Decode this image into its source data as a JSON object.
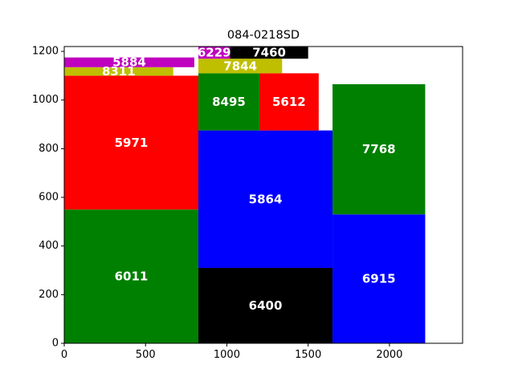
{
  "chart_data": {
    "type": "bar",
    "title": "084-0218SD",
    "xlabel": "",
    "ylabel": "",
    "xlim": [
      0,
      2450
    ],
    "ylim": [
      0,
      1220
    ],
    "xticks": [
      0,
      500,
      1000,
      1500,
      2000
    ],
    "yticks": [
      0,
      200,
      400,
      600,
      800,
      1000,
      1200
    ],
    "grid": false,
    "rectangles": [
      {
        "label": "6011",
        "x0": 0,
        "x1": 825,
        "y0": 0,
        "y1": 550,
        "color": "#008000"
      },
      {
        "label": "5971",
        "x0": 0,
        "x1": 825,
        "y0": 550,
        "y1": 1100,
        "color": "#ff0000"
      },
      {
        "label": "8311",
        "x0": 0,
        "x1": 670,
        "y0": 1100,
        "y1": 1135,
        "color": "#bfbf00"
      },
      {
        "label": "5884",
        "x0": 0,
        "x1": 800,
        "y0": 1135,
        "y1": 1175,
        "color": "#bf00bf"
      },
      {
        "label": "6400",
        "x0": 825,
        "x1": 1650,
        "y0": 0,
        "y1": 310,
        "color": "#000000"
      },
      {
        "label": "5864",
        "x0": 825,
        "x1": 1650,
        "y0": 310,
        "y1": 875,
        "color": "#0000ff"
      },
      {
        "label": "8495",
        "x0": 825,
        "x1": 1200,
        "y0": 875,
        "y1": 1110,
        "color": "#008000"
      },
      {
        "label": "5612",
        "x0": 1200,
        "x1": 1565,
        "y0": 875,
        "y1": 1110,
        "color": "#ff0000"
      },
      {
        "label": "7844",
        "x0": 825,
        "x1": 1340,
        "y0": 1110,
        "y1": 1170,
        "color": "#bfbf00"
      },
      {
        "label": "6229",
        "x0": 825,
        "x1": 1020,
        "y0": 1170,
        "y1": 1220,
        "color": "#bf00bf"
      },
      {
        "label": "7460",
        "x0": 1020,
        "x1": 1500,
        "y0": 1170,
        "y1": 1220,
        "color": "#000000"
      },
      {
        "label": "6915",
        "x0": 1650,
        "x1": 2220,
        "y0": 0,
        "y1": 530,
        "color": "#0000ff"
      },
      {
        "label": "7768",
        "x0": 1650,
        "x1": 2220,
        "y0": 530,
        "y1": 1065,
        "color": "#008000"
      }
    ]
  }
}
